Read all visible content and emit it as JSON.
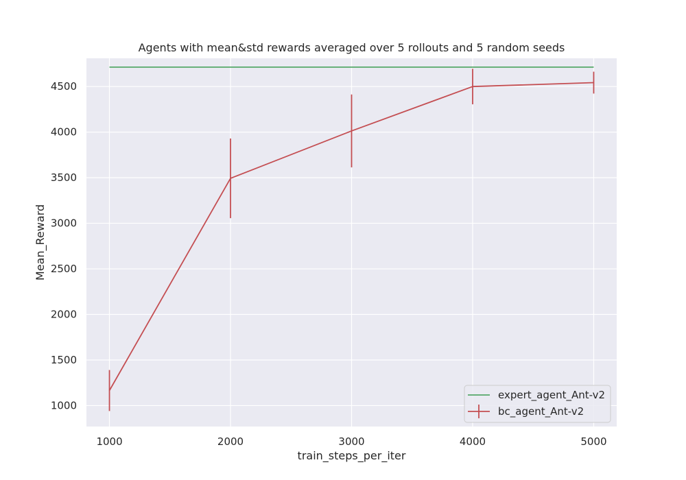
{
  "chart_data": {
    "type": "line",
    "title": "Agents with mean&std rewards averaged over 5 rollouts and 5 random seeds",
    "xlabel": "train_steps_per_iter",
    "ylabel": "Mean_Reward",
    "x": [
      1000,
      2000,
      3000,
      4000,
      5000
    ],
    "xticks": [
      "1000",
      "2000",
      "3000",
      "4000",
      "5000"
    ],
    "yticks": [
      "1000",
      "1500",
      "2000",
      "2500",
      "3000",
      "3500",
      "4000",
      "4500"
    ],
    "xlim": [
      810,
      5190
    ],
    "ylim": [
      770,
      4810
    ],
    "grid": true,
    "legend_position": "bottom-right",
    "series": [
      {
        "name": "expert_agent_Ant-v2",
        "color": "#55a868",
        "values": [
          4713,
          4713,
          4713,
          4713,
          4713
        ]
      },
      {
        "name": "bc_agent_Ant-v2",
        "color": "#c44e52",
        "values": [
          1165,
          3493,
          4013,
          4500,
          4543
        ],
        "std": [
          225,
          437,
          400,
          195,
          120
        ]
      }
    ]
  },
  "colors": {
    "plot_background": "#eaeaf2",
    "grid": "#ffffff",
    "text": "#262626"
  }
}
